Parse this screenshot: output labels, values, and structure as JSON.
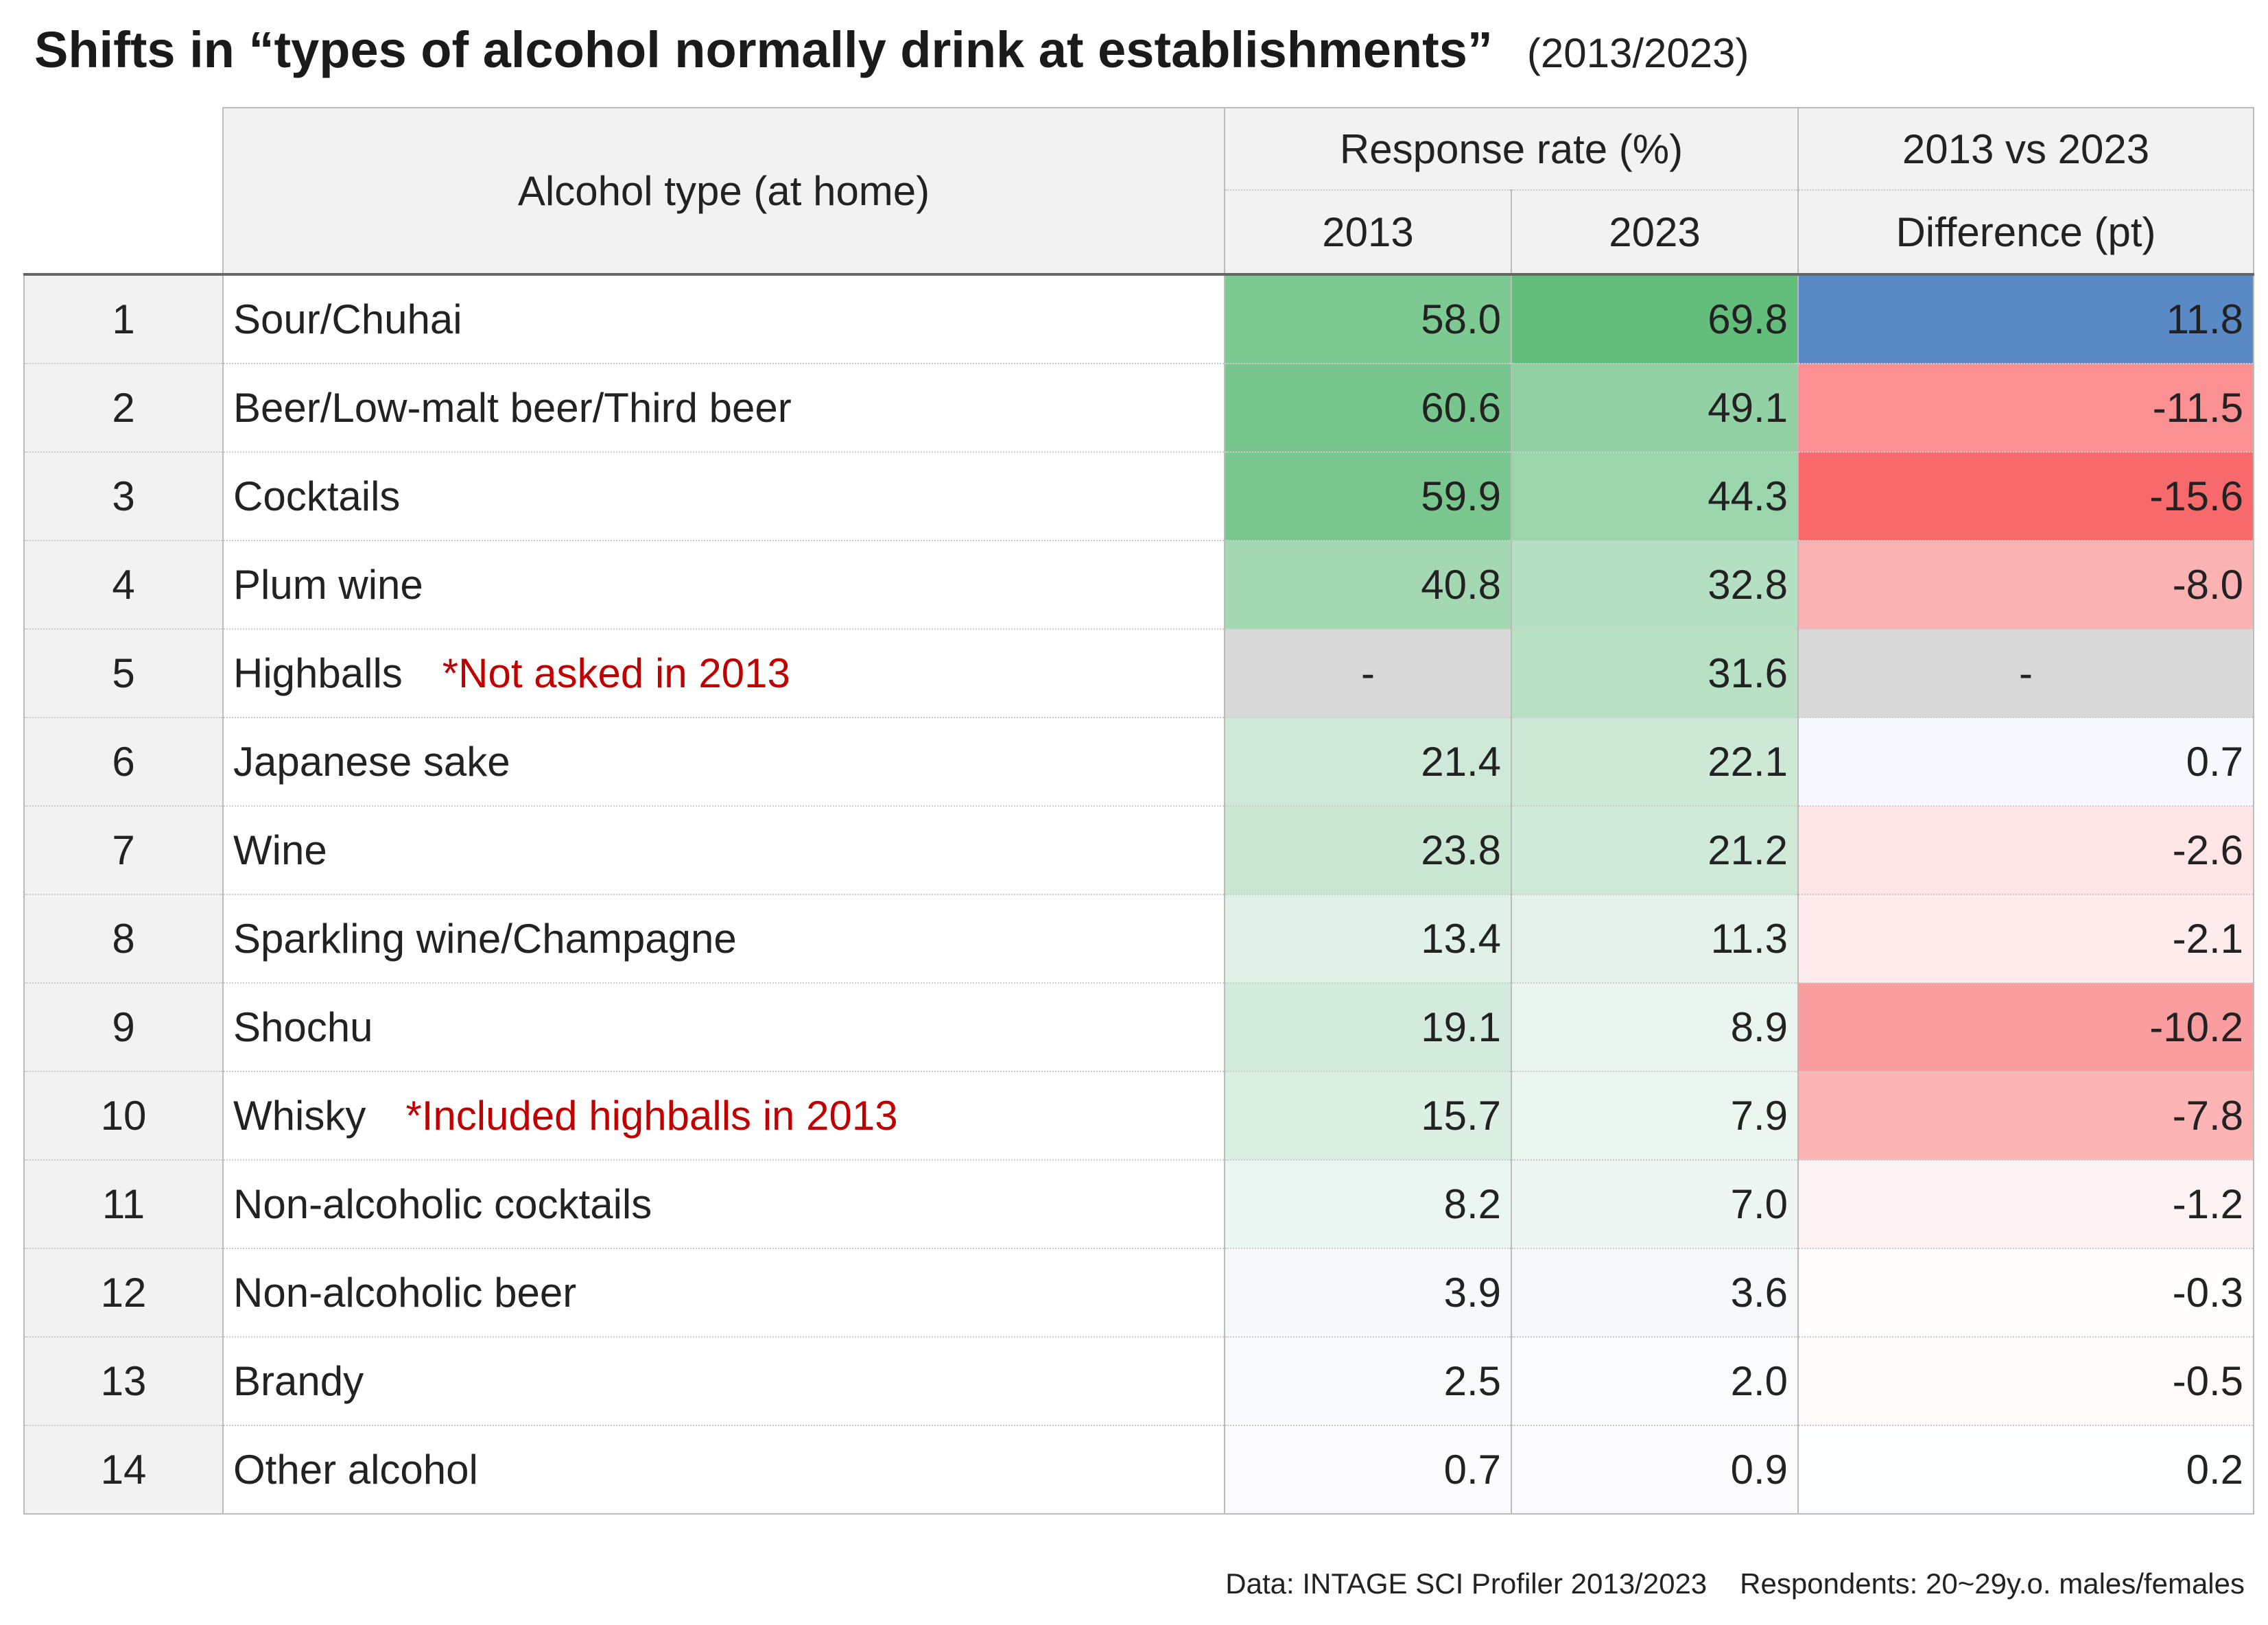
{
  "title": "Shifts in “types of alcohol normally drink at establishments”",
  "subtitle": "(2013/2023)",
  "header": {
    "alcohol_type": "Alcohol type (at home)",
    "response_rate": "Response rate (%)",
    "year_2013": "2013",
    "year_2023": "2023",
    "comparison": "2013 vs 2023",
    "difference": "Difference (pt)"
  },
  "source": {
    "data": "Data: INTAGE SCI Profiler 2013/2023",
    "respondents": "Respondents: 20~29y.o. males/females"
  },
  "colors": {
    "green_max": "#63be7b",
    "green_min": "#fcfcff",
    "blue_positive": "#5a8ac6",
    "red_negative": "#f8696b",
    "not_asked": "#d9d9d9",
    "note_text": "#c00000"
  },
  "chart_data": {
    "type": "table",
    "columns": [
      "",
      "Alcohol type (at home)",
      "2013",
      "2023",
      "Difference (pt)"
    ],
    "rows": [
      {
        "rank": "1",
        "type": "Sour/Chuhai",
        "note": "",
        "y2013": "58.0",
        "y2023": "69.8",
        "diff": "11.8"
      },
      {
        "rank": "2",
        "type": "Beer/Low-malt beer/Third beer",
        "note": "",
        "y2013": "60.6",
        "y2023": "49.1",
        "diff": "-11.5"
      },
      {
        "rank": "3",
        "type": "Cocktails",
        "note": "",
        "y2013": "59.9",
        "y2023": "44.3",
        "diff": "-15.6"
      },
      {
        "rank": "4",
        "type": "Plum wine",
        "note": "",
        "y2013": "40.8",
        "y2023": "32.8",
        "diff": "-8.0"
      },
      {
        "rank": "5",
        "type": "Highballs",
        "note": "*Not asked in 2013",
        "y2013": "-",
        "y2023": "31.6",
        "diff": "-"
      },
      {
        "rank": "6",
        "type": "Japanese sake",
        "note": "",
        "y2013": "21.4",
        "y2023": "22.1",
        "diff": "0.7"
      },
      {
        "rank": "7",
        "type": "Wine",
        "note": "",
        "y2013": "23.8",
        "y2023": "21.2",
        "diff": "-2.6"
      },
      {
        "rank": "8",
        "type": "Sparkling wine/Champagne",
        "note": "",
        "y2013": "13.4",
        "y2023": "11.3",
        "diff": "-2.1"
      },
      {
        "rank": "9",
        "type": "Shochu",
        "note": "",
        "y2013": "19.1",
        "y2023": "8.9",
        "diff": "-10.2"
      },
      {
        "rank": "10",
        "type": "Whisky",
        "note": "*Included highballs in 2013",
        "y2013": "15.7",
        "y2023": "7.9",
        "diff": "-7.8"
      },
      {
        "rank": "11",
        "type": "Non-alcoholic cocktails",
        "note": "",
        "y2013": "8.2",
        "y2023": "7.0",
        "diff": "-1.2"
      },
      {
        "rank": "12",
        "type": "Non-alcoholic beer",
        "note": "",
        "y2013": "3.9",
        "y2023": "3.6",
        "diff": "-0.3"
      },
      {
        "rank": "13",
        "type": "Brandy",
        "note": "",
        "y2013": "2.5",
        "y2023": "2.0",
        "diff": "-0.5"
      },
      {
        "rank": "14",
        "type": "Other alcohol",
        "note": "",
        "y2013": "0.7",
        "y2023": "0.9",
        "diff": "0.2"
      }
    ]
  }
}
